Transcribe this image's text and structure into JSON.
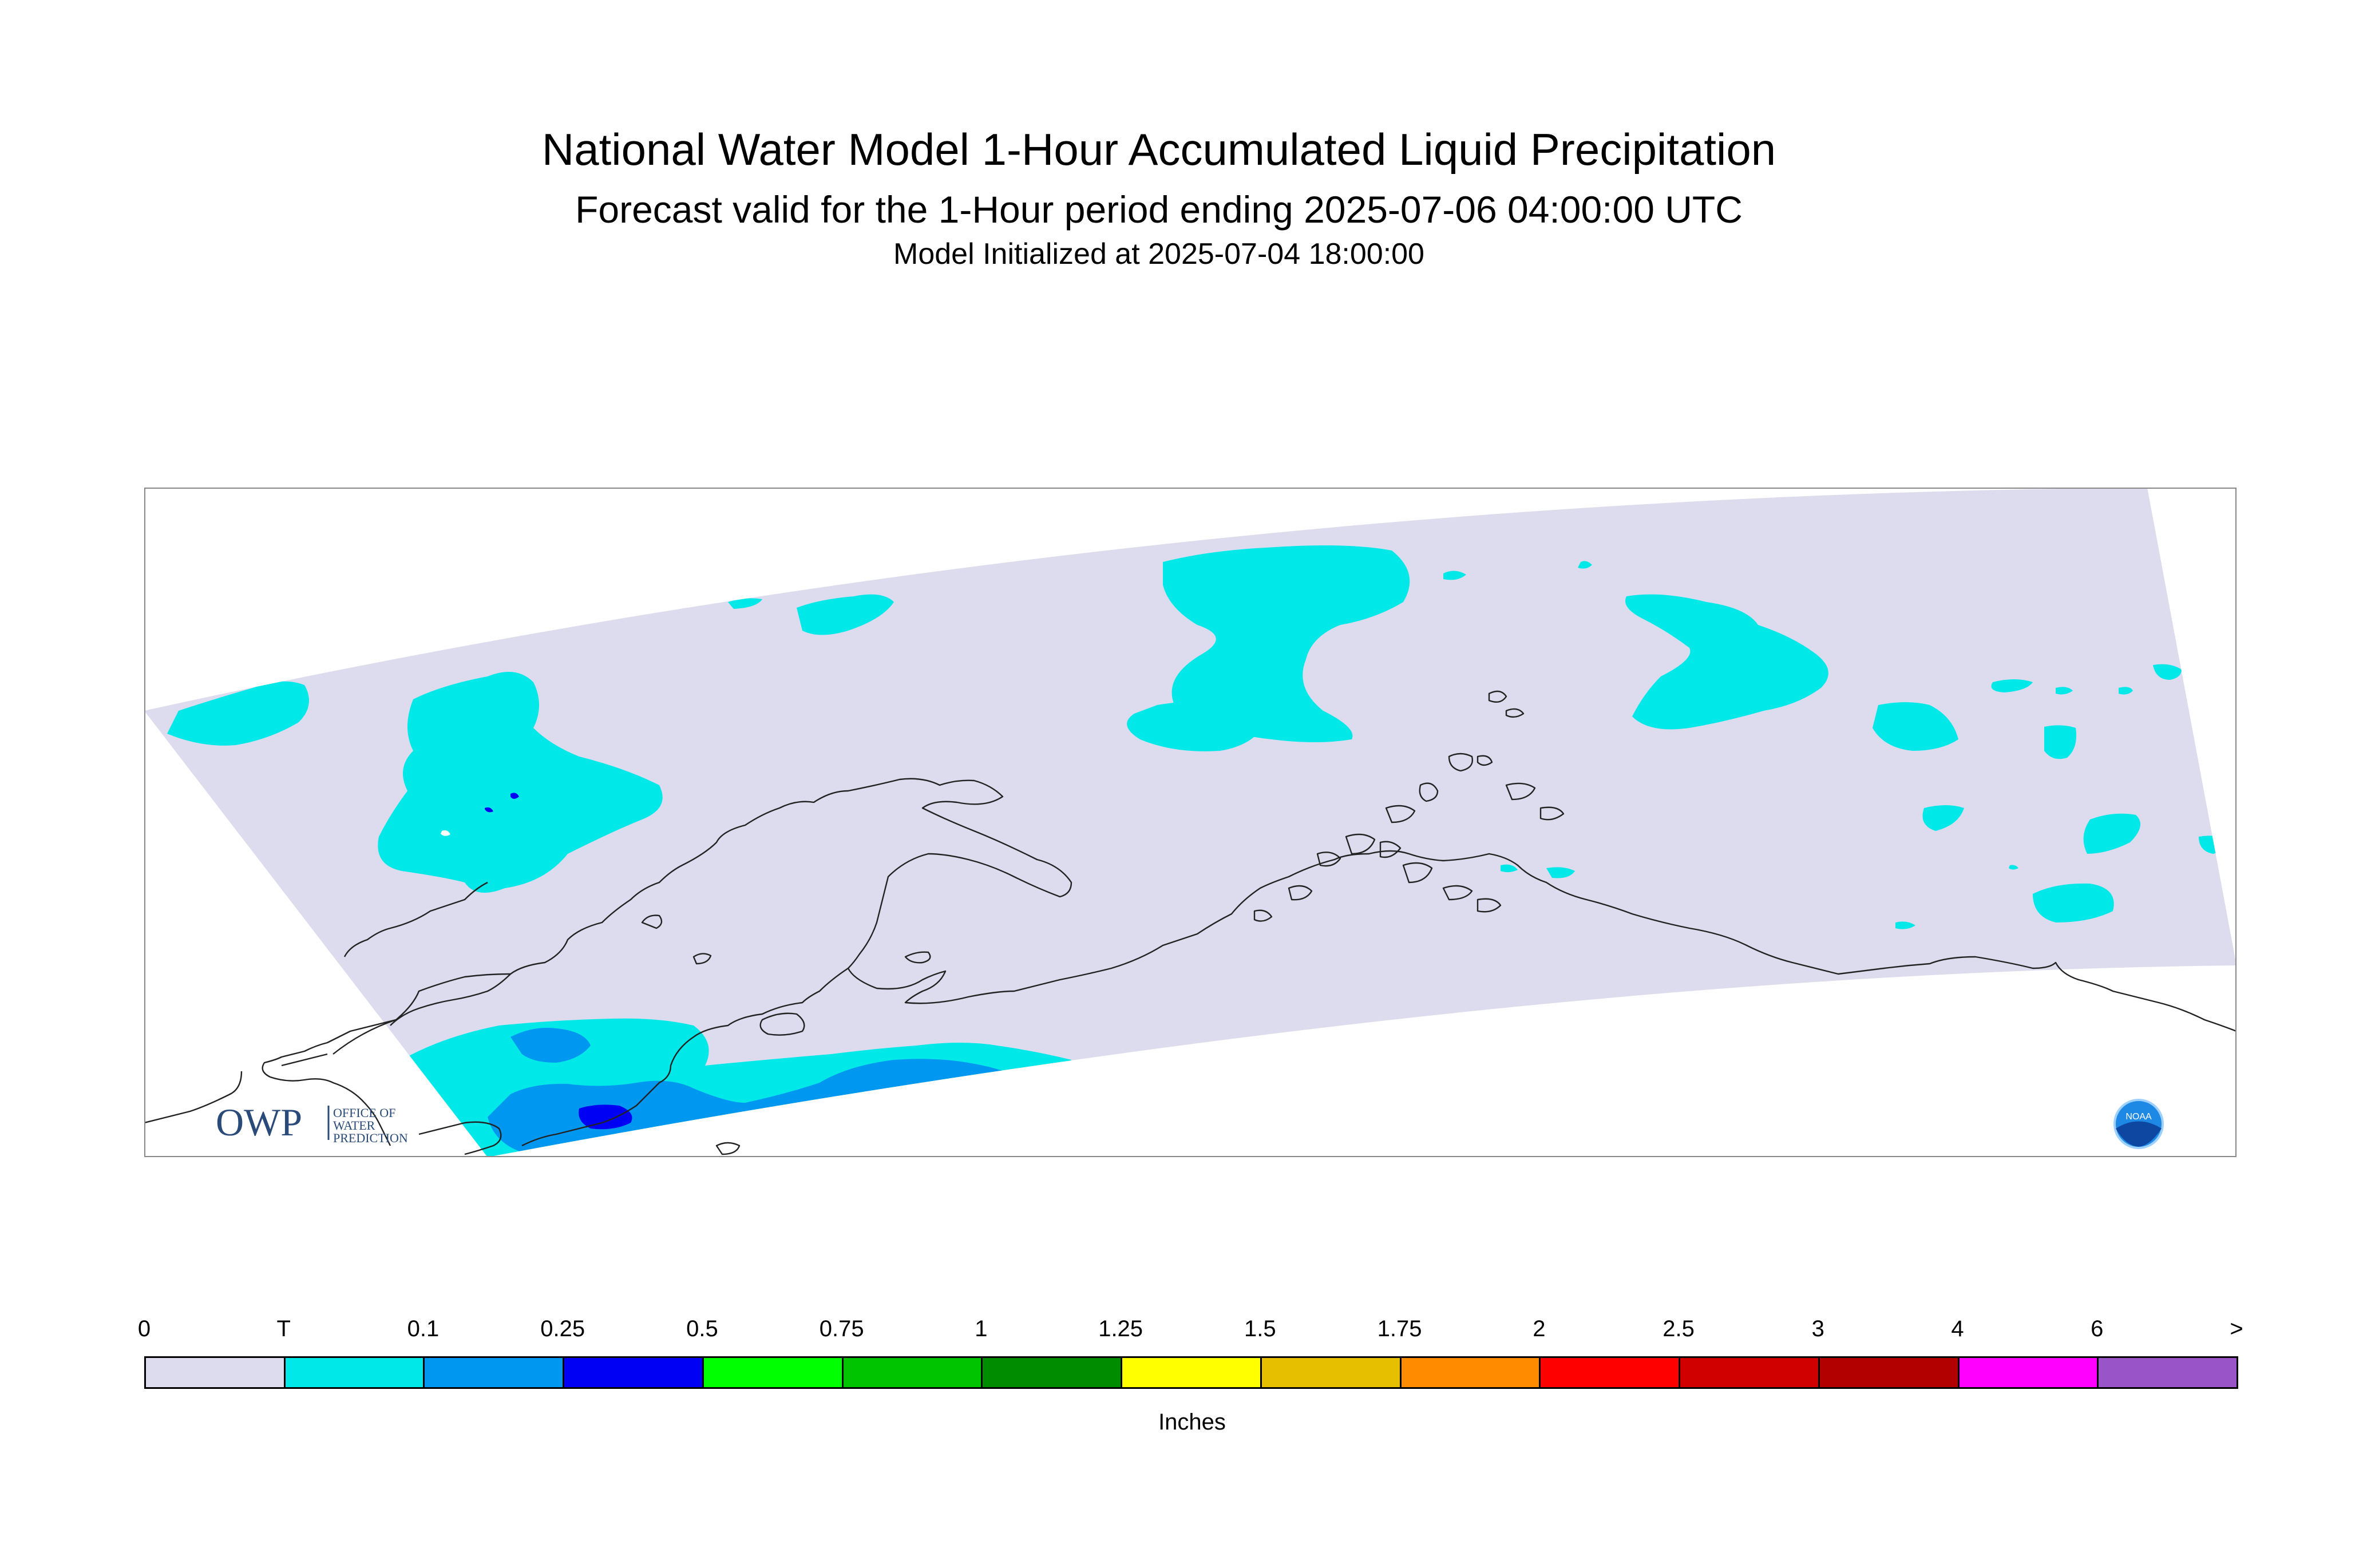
{
  "title": {
    "main": "National Water Model 1-Hour Accumulated Liquid Precipitation",
    "sub": "Forecast valid for the 1-Hour period ending 2025-07-06 04:00:00 UTC",
    "init": "Model Initialized at 2025-07-04 18:00:00"
  },
  "logos": {
    "owp": {
      "letters": "OWP",
      "line1": "OFFICE OF",
      "line2": "WATER",
      "line3": "PREDICTION"
    },
    "noaa": {
      "text": "NOAA"
    }
  },
  "legend": {
    "units": "Inches",
    "ticks": [
      "0",
      "T",
      "0.1",
      "0.25",
      "0.5",
      "0.75",
      "1",
      "1.25",
      "1.5",
      "1.75",
      "2",
      "2.5",
      "3",
      "4",
      "6",
      ">"
    ],
    "colors": [
      "#dcdcee",
      "#00e8e8",
      "#0097f0",
      "#0000f4",
      "#00ff00",
      "#00c400",
      "#008c00",
      "#ffff00",
      "#e6c000",
      "#ff8c00",
      "#ff0000",
      "#d00000",
      "#b20000",
      "#ff00ff",
      "#9955c8"
    ]
  },
  "map": {
    "colors": {
      "domain": "#dcdcee",
      "trace": "#00e8e8",
      "light": "#0097f0",
      "moderate": "#0000f4",
      "coast": "#222222",
      "frame": "#888888"
    }
  }
}
